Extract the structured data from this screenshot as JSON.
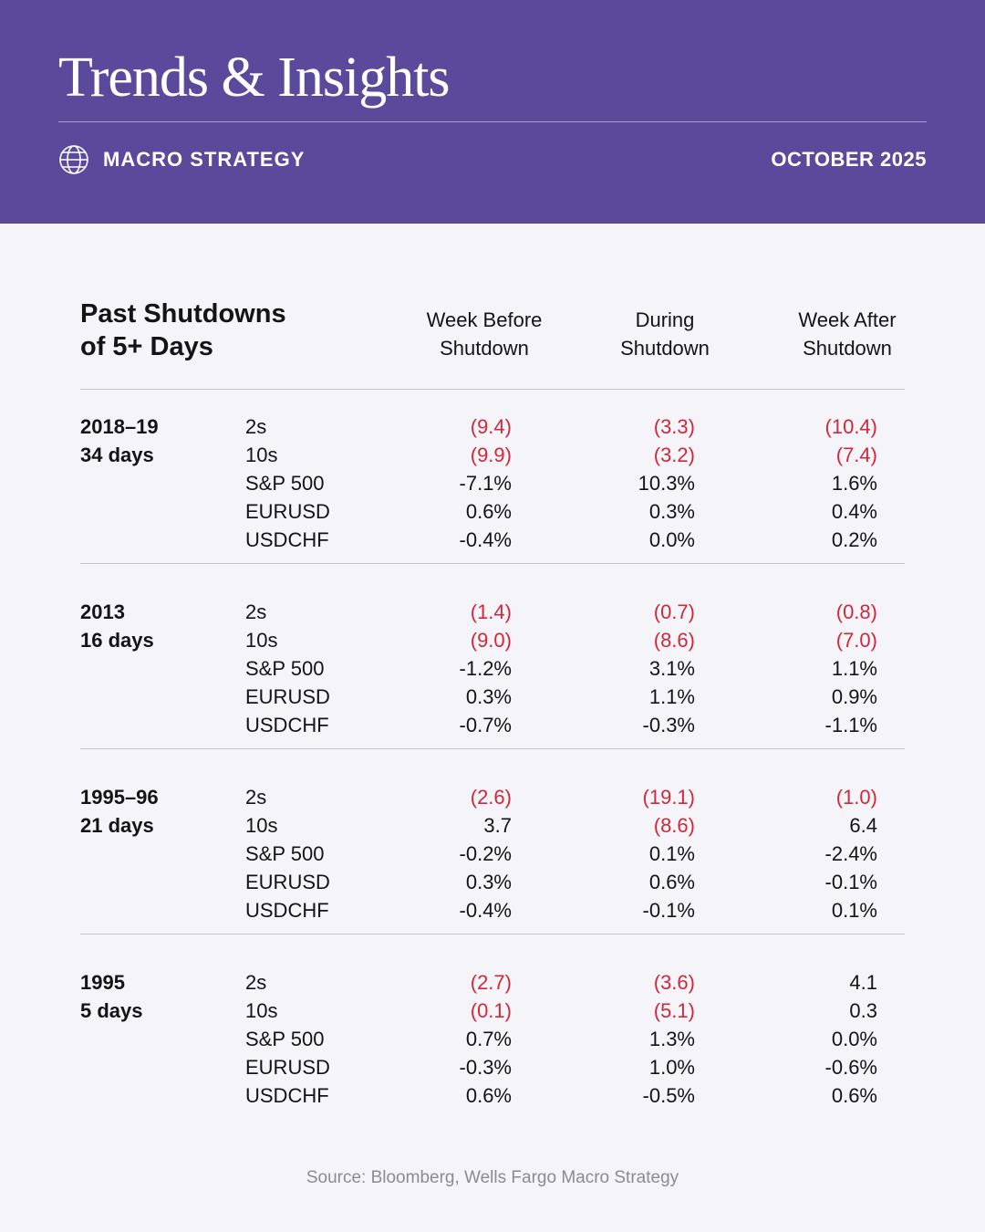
{
  "header": {
    "title": "Trends & Insights",
    "section": "MACRO STRATEGY",
    "date": "OCTOBER 2025"
  },
  "table": {
    "heading": "Past Shutdowns of 5+ Days",
    "columns": [
      "Week Before Shutdown",
      "During Shutdown",
      "Week After Shutdown"
    ],
    "groups": [
      {
        "period": "2018–19",
        "duration": "34 days",
        "rows": [
          [
            "2s",
            "(9.4)",
            "(3.3)",
            "(10.4)"
          ],
          [
            "10s",
            "(9.9)",
            "(3.2)",
            "(7.4)"
          ],
          [
            "S&P 500",
            "-7.1%",
            "10.3%",
            "1.6%"
          ],
          [
            "EURUSD",
            "0.6%",
            "0.3%",
            "0.4%"
          ],
          [
            "USDCHF",
            "-0.4%",
            "0.0%",
            "0.2%"
          ]
        ]
      },
      {
        "period": "2013",
        "duration": "16 days",
        "rows": [
          [
            "2s",
            "(1.4)",
            "(0.7)",
            "(0.8)"
          ],
          [
            "10s",
            "(9.0)",
            "(8.6)",
            "(7.0)"
          ],
          [
            "S&P 500",
            "-1.2%",
            "3.1%",
            "1.1%"
          ],
          [
            "EURUSD",
            "0.3%",
            "1.1%",
            "0.9%"
          ],
          [
            "USDCHF",
            "-0.7%",
            "-0.3%",
            "-1.1%"
          ]
        ]
      },
      {
        "period": "1995–96",
        "duration": "21 days",
        "rows": [
          [
            "2s",
            "(2.6)",
            "(19.1)",
            "(1.0)"
          ],
          [
            "10s",
            "3.7",
            "(8.6)",
            "6.4"
          ],
          [
            "S&P 500",
            "-0.2%",
            "0.1%",
            "-2.4%"
          ],
          [
            "EURUSD",
            "0.3%",
            "0.6%",
            "-0.1%"
          ],
          [
            "USDCHF",
            "-0.4%",
            "-0.1%",
            "0.1%"
          ]
        ]
      },
      {
        "period": "1995",
        "duration": "5 days",
        "rows": [
          [
            "2s",
            "(2.7)",
            "(3.6)",
            "4.1"
          ],
          [
            "10s",
            "(0.1)",
            "(5.1)",
            "0.3"
          ],
          [
            "S&P 500",
            "0.7%",
            "1.3%",
            "0.0%"
          ],
          [
            "EURUSD",
            "-0.3%",
            "1.0%",
            "-0.6%"
          ],
          [
            "USDCHF",
            "0.6%",
            "-0.5%",
            "0.6%"
          ]
        ]
      }
    ]
  },
  "footer": {
    "source": "Source: Bloomberg, Wells Fargo Macro Strategy"
  }
}
